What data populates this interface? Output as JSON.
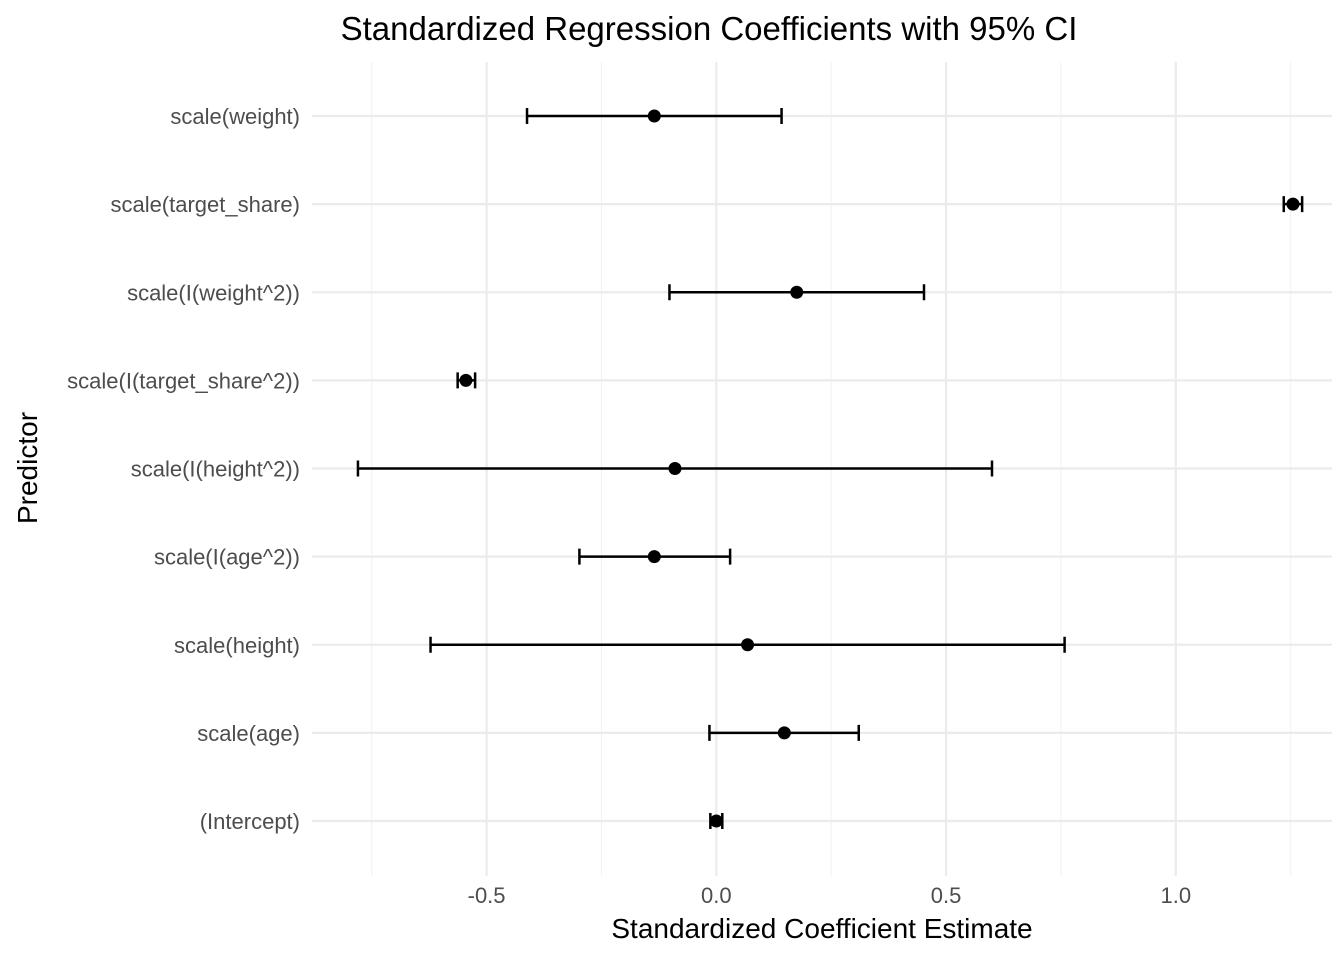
{
  "chart_data": {
    "type": "scatter",
    "title": "Standardized Regression Coefficients with 95% CI",
    "xlabel": "Standardized Coefficient Estimate",
    "ylabel": "Predictor",
    "xlim": [
      -0.88,
      1.34
    ],
    "x_ticks": [
      -0.5,
      0.0,
      0.5,
      1.0
    ],
    "x_tick_labels": [
      "-0.5",
      "0.0",
      "0.5",
      "1.0"
    ],
    "x_minor_ticks": [
      -0.75,
      -0.25,
      0.25,
      0.75,
      1.25
    ],
    "grid": true,
    "legend": "none",
    "categories": [
      "scale(weight)",
      "scale(target_share)",
      "scale(I(weight^2))",
      "scale(I(target_share^2))",
      "scale(I(height^2))",
      "scale(I(age^2))",
      "scale(height)",
      "scale(age)",
      "(Intercept)"
    ],
    "estimates": [
      -0.135,
      1.255,
      0.175,
      -0.545,
      -0.09,
      -0.135,
      0.068,
      0.148,
      0.0
    ],
    "ci_lower": [
      -0.412,
      1.235,
      -0.102,
      -0.563,
      -0.78,
      -0.298,
      -0.622,
      -0.015,
      -0.013
    ],
    "ci_upper": [
      0.142,
      1.275,
      0.452,
      -0.525,
      0.6,
      0.03,
      0.758,
      0.31,
      0.013
    ]
  }
}
